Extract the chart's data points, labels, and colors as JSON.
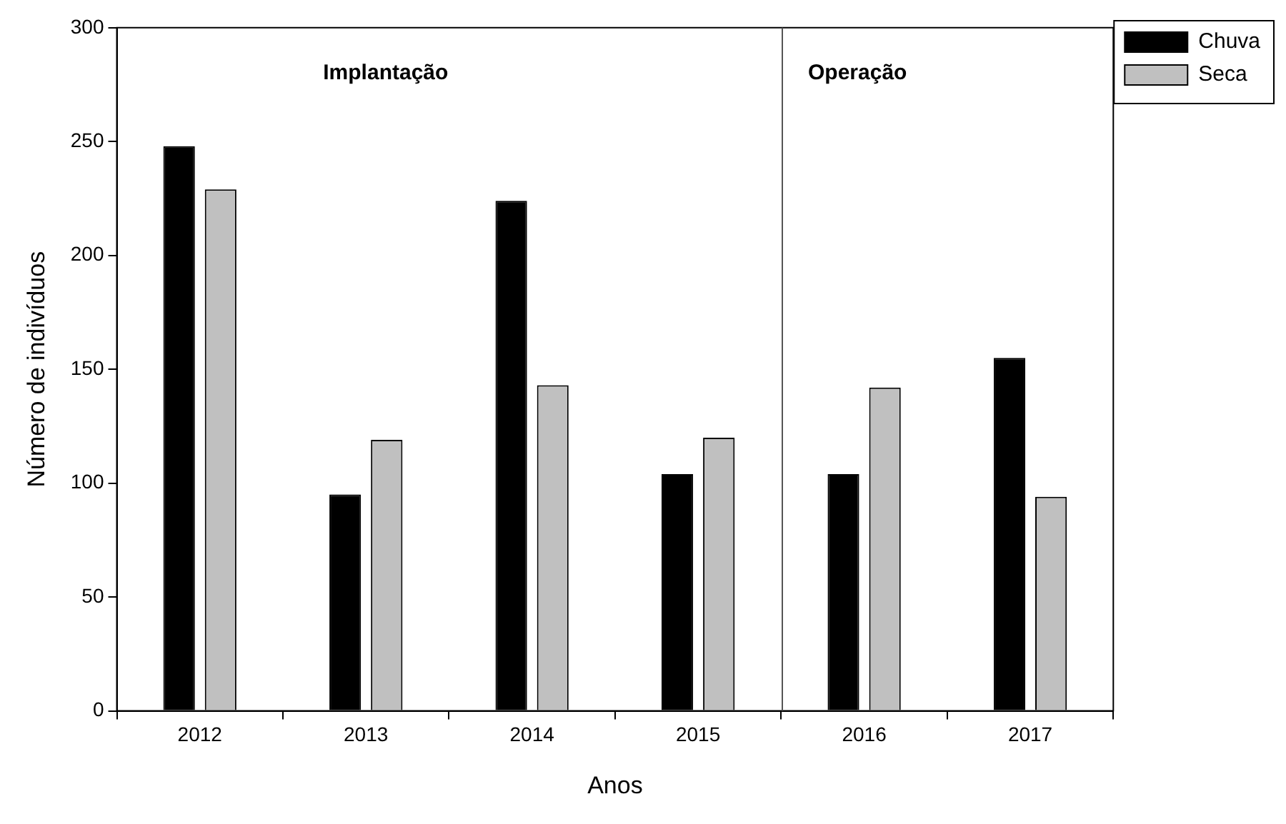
{
  "chart_data": {
    "type": "bar",
    "xlabel": "Anos",
    "ylabel": "Número de indivíduos",
    "categories": [
      "2012",
      "2013",
      "2014",
      "2015",
      "2016",
      "2017"
    ],
    "series": [
      {
        "name": "Chuva",
        "color": "#000000",
        "values": [
          248,
          95,
          224,
          104,
          104,
          155
        ]
      },
      {
        "name": "Seca",
        "color": "#c0c0c0",
        "values": [
          229,
          119,
          143,
          120,
          142,
          94
        ]
      }
    ],
    "ylim": [
      0,
      300
    ],
    "yticks": [
      0,
      50,
      100,
      150,
      200,
      250,
      300
    ],
    "annotations": [
      "Implantação",
      "Operação"
    ],
    "grid": false,
    "legend": "top right"
  }
}
